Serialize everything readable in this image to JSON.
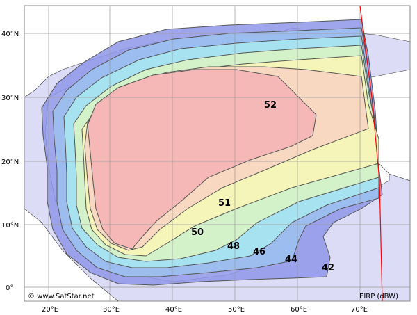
{
  "map": {
    "lat_labels": [
      "40°N",
      "30°N",
      "20°N",
      "10°N",
      "0°"
    ],
    "lon_labels": [
      "20°E",
      "30°E",
      "40°E",
      "50°E",
      "60°E",
      "70°E"
    ],
    "contour_labels": [
      "52",
      "51",
      "50",
      "48",
      "46",
      "44",
      "42"
    ],
    "copyright": "© www.SatStar.net",
    "units": "EIRP (dBW)",
    "colors": {
      "sea": "#dcdcf7",
      "land": "#ffffff",
      "c42": "#8f96e8",
      "c44": "#9cc0f0",
      "c46": "#a8e6f0",
      "c48": "#d6f2c6",
      "c50": "#f7f4b8",
      "c51": "#f8d6c0",
      "c52": "#f4b6b6",
      "edge_line": "#ff0000"
    }
  }
}
